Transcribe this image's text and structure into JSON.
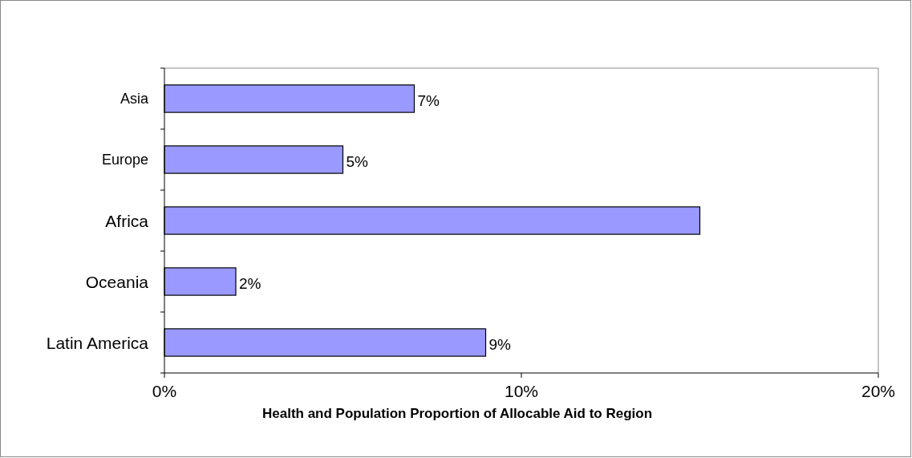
{
  "chart_data": {
    "type": "bar",
    "orientation": "horizontal",
    "xlabel": "Health and Population Proportion of Allocable Aid to Region",
    "categories": [
      "Asia",
      "Europe",
      "Africa",
      "Oceania",
      "Latin America"
    ],
    "values": [
      7,
      5,
      15,
      2,
      9
    ],
    "value_labels": [
      "7%",
      "5%",
      null,
      "2%",
      "9%"
    ],
    "color": "#9999ff",
    "xlim": [
      0,
      20
    ],
    "xticks": [
      {
        "value": 0,
        "label": "0%"
      },
      {
        "value": 10,
        "label": "10%"
      },
      {
        "value": 20,
        "label": "20%"
      }
    ],
    "grid": false
  }
}
